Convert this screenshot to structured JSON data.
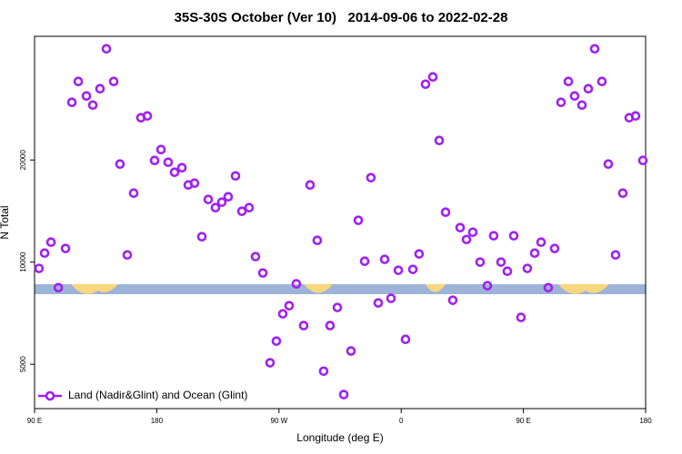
{
  "chart_data": {
    "type": "scatter",
    "title": "35S-30S October (Ver 10)   2014-09-06 to 2022-02-28",
    "x_label": "Longitude (deg E)",
    "y_label": "N Total",
    "ylog": true,
    "legend": "lower left",
    "xlim": [
      90,
      540
    ],
    "xticks": [
      {
        "value": 90,
        "label": "90 E"
      },
      180,
      {
        "value": 270,
        "label": "90 W"
      },
      {
        "value": 360,
        "label": "0"
      },
      {
        "value": 450,
        "label": "90 E"
      },
      {
        "value": 540,
        "label": "180"
      }
    ],
    "ylim": [
      3700,
      46300
    ],
    "yticks": [
      5000,
      10000,
      20000
    ],
    "series": [
      {
        "name": "Land (Nadir&Glint) and Ocean (Glint)",
        "color": "#a020f0",
        "x": [
          93.3,
          97.4,
          102.1,
          107.5,
          112.8,
          117.5,
          122.2,
          128.2,
          132.9,
          138.2,
          142.9,
          148.3,
          152.9,
          158.3,
          163.0,
          168.3,
          173.0,
          178.4,
          183.1,
          188.4,
          193.1,
          198.5,
          203.2,
          207.8,
          213.2,
          217.9,
          223.2,
          227.9,
          232.6,
          238.0,
          242.7,
          248.0,
          252.7,
          258.1,
          263.4,
          268.1,
          272.8,
          277.5,
          282.8,
          288.2,
          292.9,
          298.2,
          302.9,
          307.6,
          313.0,
          317.7,
          323.0,
          328.4,
          333.1,
          337.7,
          343.1,
          347.8,
          352.5,
          357.9,
          363.2,
          368.6,
          373.2,
          377.9,
          383.3,
          388.0,
          392.7,
          398.0,
          403.4,
          408.1,
          412.7,
          418.1,
          423.5,
          428.1,
          433.5,
          438.2,
          442.9,
          448.2,
          452.9,
          458.3,
          463.0,
          468.3,
          473.0,
          477.7,
          483.1,
          487.7,
          493.1,
          497.8,
          502.5,
          507.8,
          512.5,
          517.9,
          523.2,
          527.9,
          532.6,
          538.0
        ],
        "values": [
          9580,
          10630,
          11450,
          8410,
          10970,
          29580,
          34080,
          30880,
          29030,
          32440,
          42540,
          34080,
          19450,
          10500,
          15970,
          26640,
          26970,
          19940,
          21470,
          19690,
          18400,
          18980,
          16880,
          17090,
          11880,
          15300,
          14470,
          15020,
          15580,
          17950,
          14120,
          14470,
          10380,
          9290,
          5050,
          5850,
          7040,
          7440,
          8630,
          6500,
          16880,
          11590,
          4770,
          6500,
          7350,
          4070,
          5470,
          13280,
          10060,
          17740,
          7580,
          10190,
          7820,
          9460,
          5920,
          9520,
          10570,
          33450,
          35150,
          22830,
          14030,
          7720,
          12640,
          11660,
          12250,
          10000,
          8520,
          11960,
          10000,
          9400,
          11960,
          6870,
          9580,
          10630,
          11450,
          8410,
          10970,
          29580,
          34080,
          30880,
          29030,
          32440,
          42540,
          34080,
          19450,
          10500,
          15970,
          26640,
          26970,
          19940
        ]
      }
    ]
  }
}
